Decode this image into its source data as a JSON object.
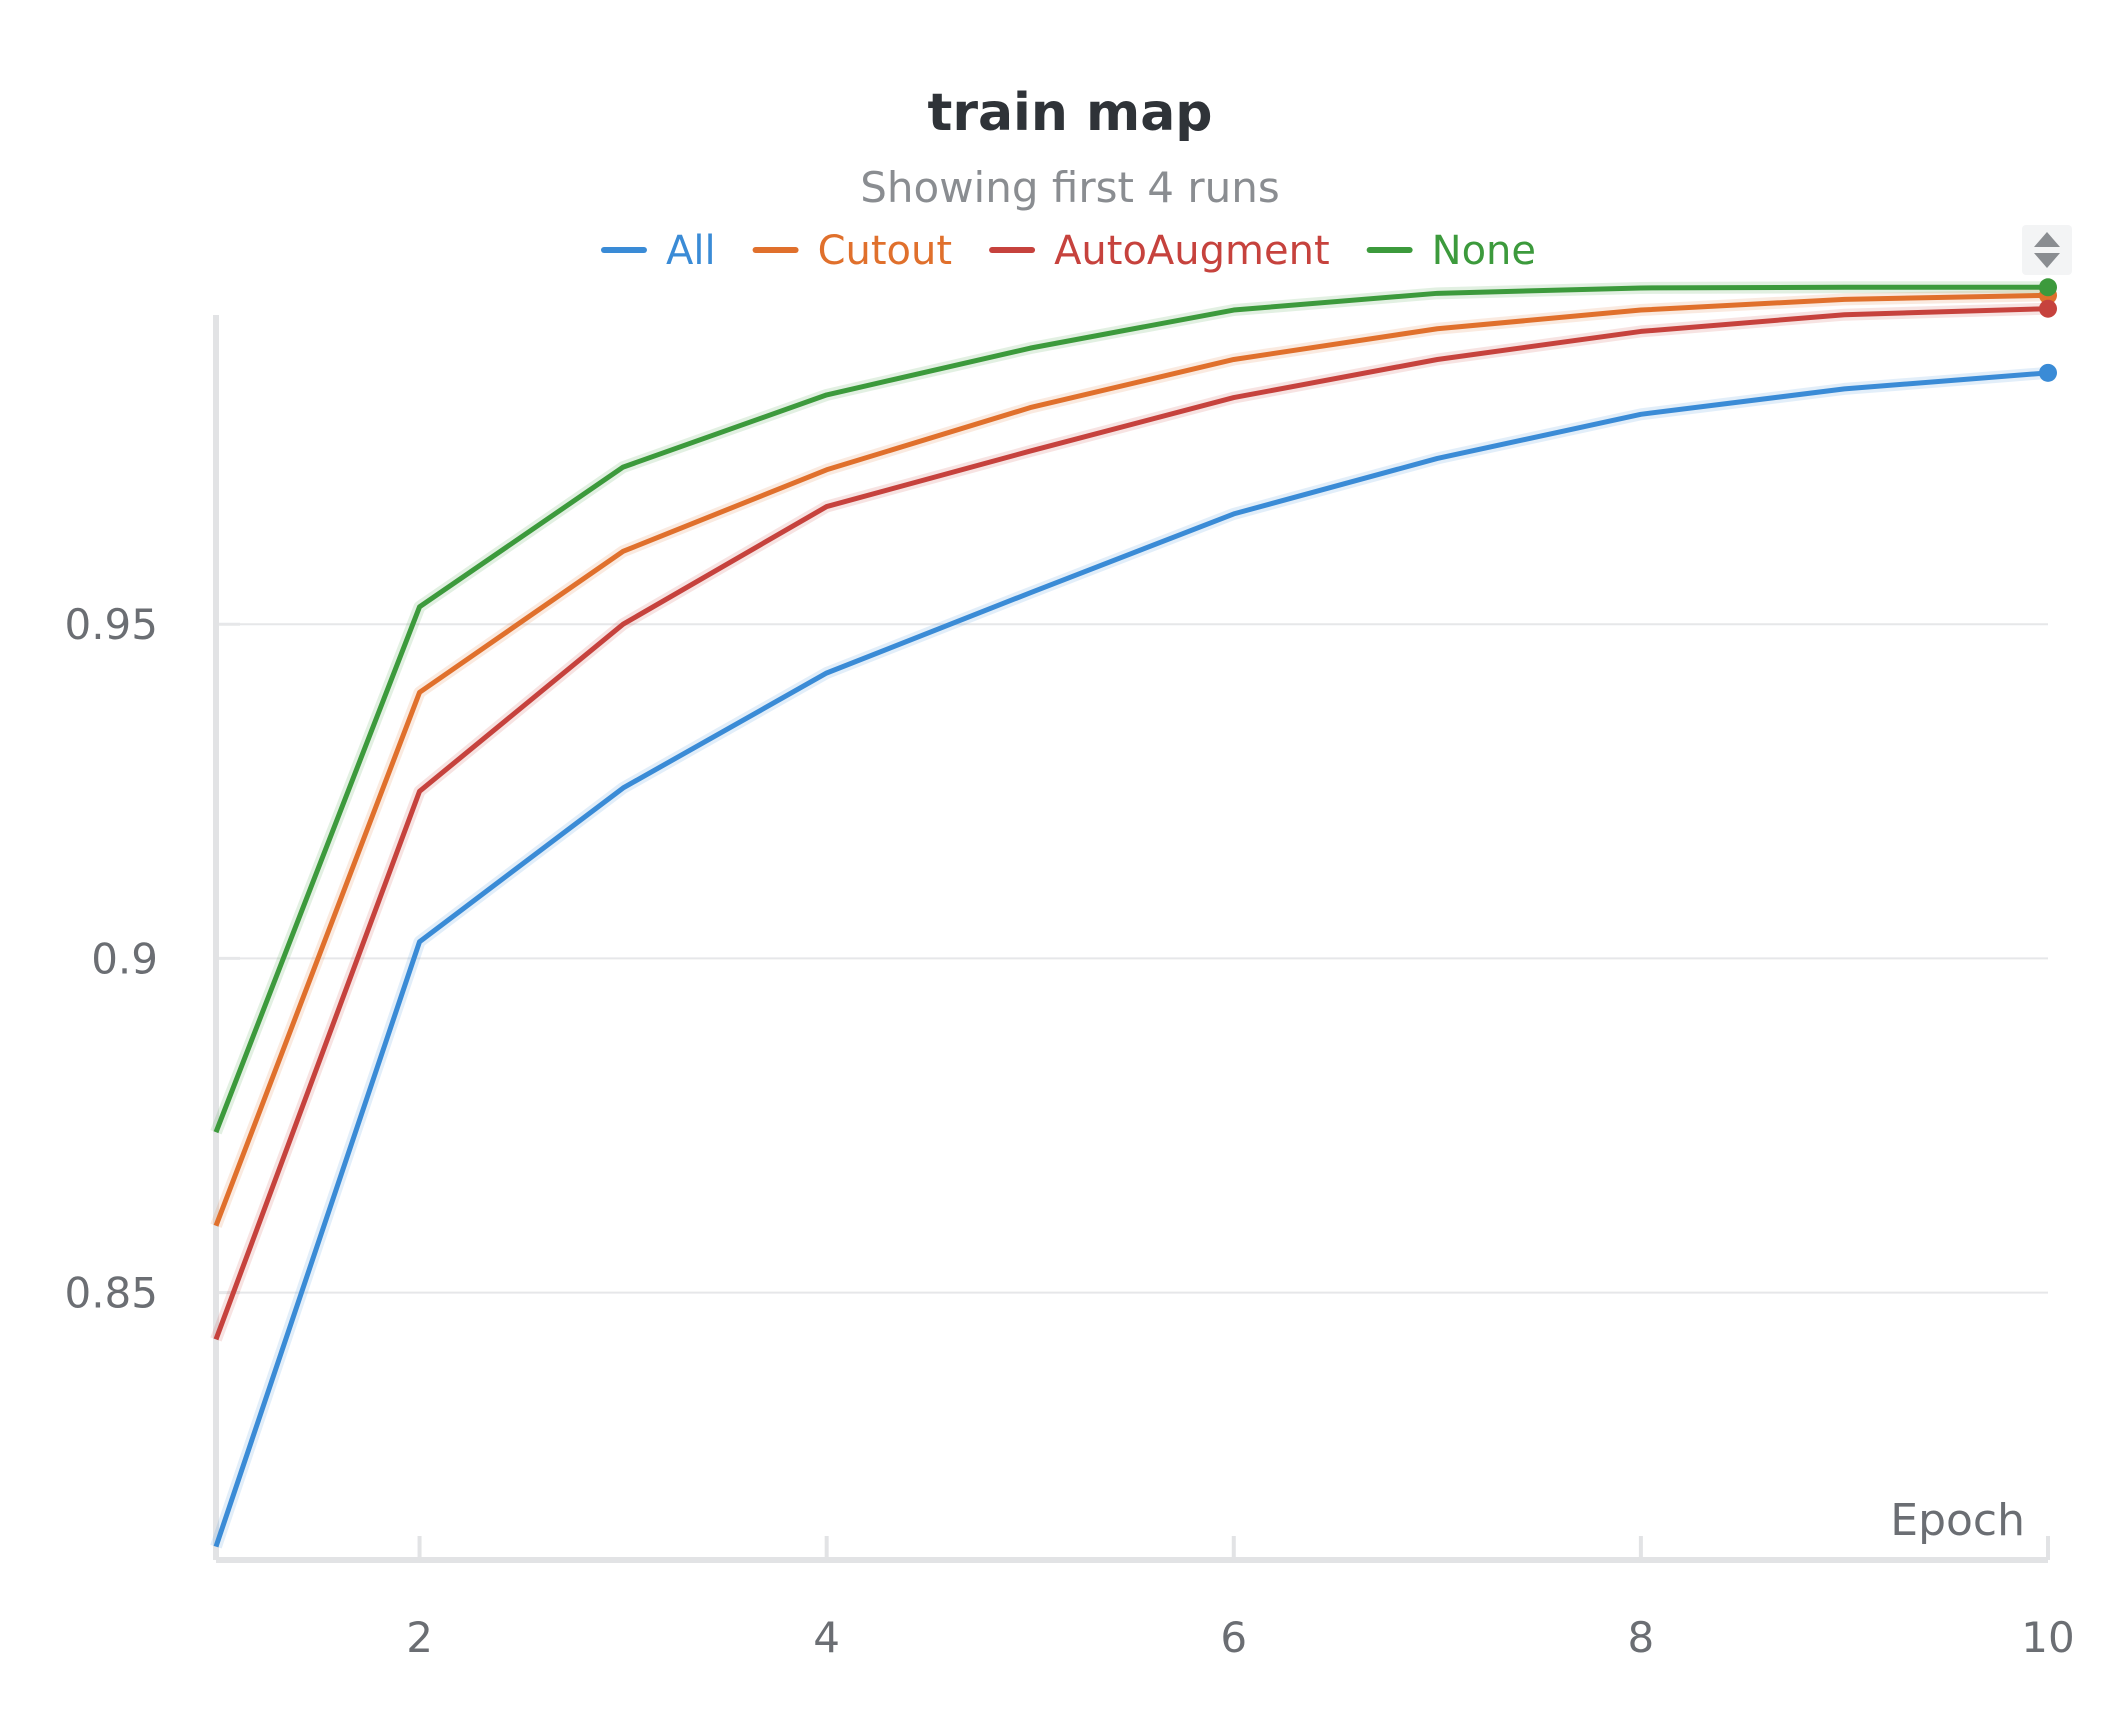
{
  "chart_data": {
    "type": "line",
    "title": "train map",
    "subtitle": "Showing first 4 runs",
    "xlabel": "Epoch",
    "ylabel": "",
    "xlim": [
      1,
      10
    ],
    "ylim": [
      0.81,
      0.9985
    ],
    "x_ticks": [
      2,
      4,
      6,
      8,
      10
    ],
    "y_ticks": [
      0.85,
      0.9,
      0.95
    ],
    "y_tick_labels": [
      "0.85",
      "0.9",
      "0.95"
    ],
    "grid": "horizontal",
    "legend_position": "top",
    "x": [
      1,
      2,
      3,
      4,
      5,
      6,
      7,
      8,
      9,
      10
    ],
    "series": [
      {
        "name": "All",
        "color": "#3a8bd6",
        "values": [
          0.812,
          0.9025,
          0.9255,
          0.9427,
          0.9547,
          0.9665,
          0.9748,
          0.9814,
          0.9852,
          0.9876
        ]
      },
      {
        "name": "Cutout",
        "color": "#e0702c",
        "values": [
          0.86,
          0.9398,
          0.9609,
          0.9731,
          0.9824,
          0.9896,
          0.9942,
          0.997,
          0.9986,
          0.9992
        ]
      },
      {
        "name": "AutoAugment",
        "color": "#c6423d",
        "values": [
          0.843,
          0.925,
          0.95,
          0.9676,
          0.9759,
          0.9839,
          0.9896,
          0.9938,
          0.9963,
          0.9972
        ]
      },
      {
        "name": "None",
        "color": "#3c9a3c",
        "values": [
          0.874,
          0.9526,
          0.9735,
          0.9843,
          0.9913,
          0.997,
          0.9995,
          1.0003,
          1.0004,
          1.0004
        ]
      }
    ]
  }
}
